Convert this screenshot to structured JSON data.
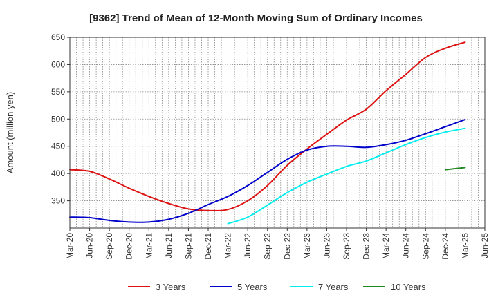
{
  "chart_data": {
    "type": "line",
    "title": "[9362]  Trend of Mean of 12-Month Moving Sum of Ordinary Incomes",
    "xlabel": "",
    "ylabel": "Amount (million yen)",
    "ylim": [
      300,
      650
    ],
    "yticks": [
      350,
      400,
      450,
      500,
      550,
      600,
      650
    ],
    "categories": [
      "Mar-20",
      "Jun-20",
      "Sep-20",
      "Dec-20",
      "Mar-21",
      "Jun-21",
      "Sep-21",
      "Dec-21",
      "Mar-22",
      "Jun-22",
      "Sep-22",
      "Dec-22",
      "Mar-23",
      "Jun-23",
      "Sep-23",
      "Dec-23",
      "Mar-24",
      "Jun-24",
      "Sep-24",
      "Dec-24",
      "Mar-25",
      "Jun-25"
    ],
    "grid": true,
    "legend_position": "bottom",
    "series": [
      {
        "name": "3 Years",
        "color": "#dd1111",
        "values": [
          407,
          404,
          390,
          373,
          358,
          345,
          335,
          332,
          334,
          350,
          378,
          415,
          445,
          472,
          498,
          518,
          552,
          582,
          613,
          630,
          641,
          null
        ]
      },
      {
        "name": "5 Years",
        "color": "#0000cc",
        "values": [
          320,
          319,
          314,
          311,
          311,
          316,
          327,
          343,
          358,
          378,
          402,
          426,
          443,
          450,
          450,
          448,
          453,
          461,
          473,
          486,
          499,
          null
        ]
      },
      {
        "name": "7 Years",
        "color": "#00eeee",
        "values": [
          null,
          null,
          null,
          null,
          null,
          null,
          null,
          null,
          308,
          320,
          342,
          365,
          384,
          399,
          413,
          423,
          438,
          453,
          466,
          476,
          483,
          null
        ]
      },
      {
        "name": "10 Years",
        "color": "#228822",
        "values": [
          null,
          null,
          null,
          null,
          null,
          null,
          null,
          null,
          null,
          null,
          null,
          null,
          null,
          null,
          null,
          null,
          null,
          null,
          null,
          407,
          411,
          null
        ]
      }
    ]
  }
}
